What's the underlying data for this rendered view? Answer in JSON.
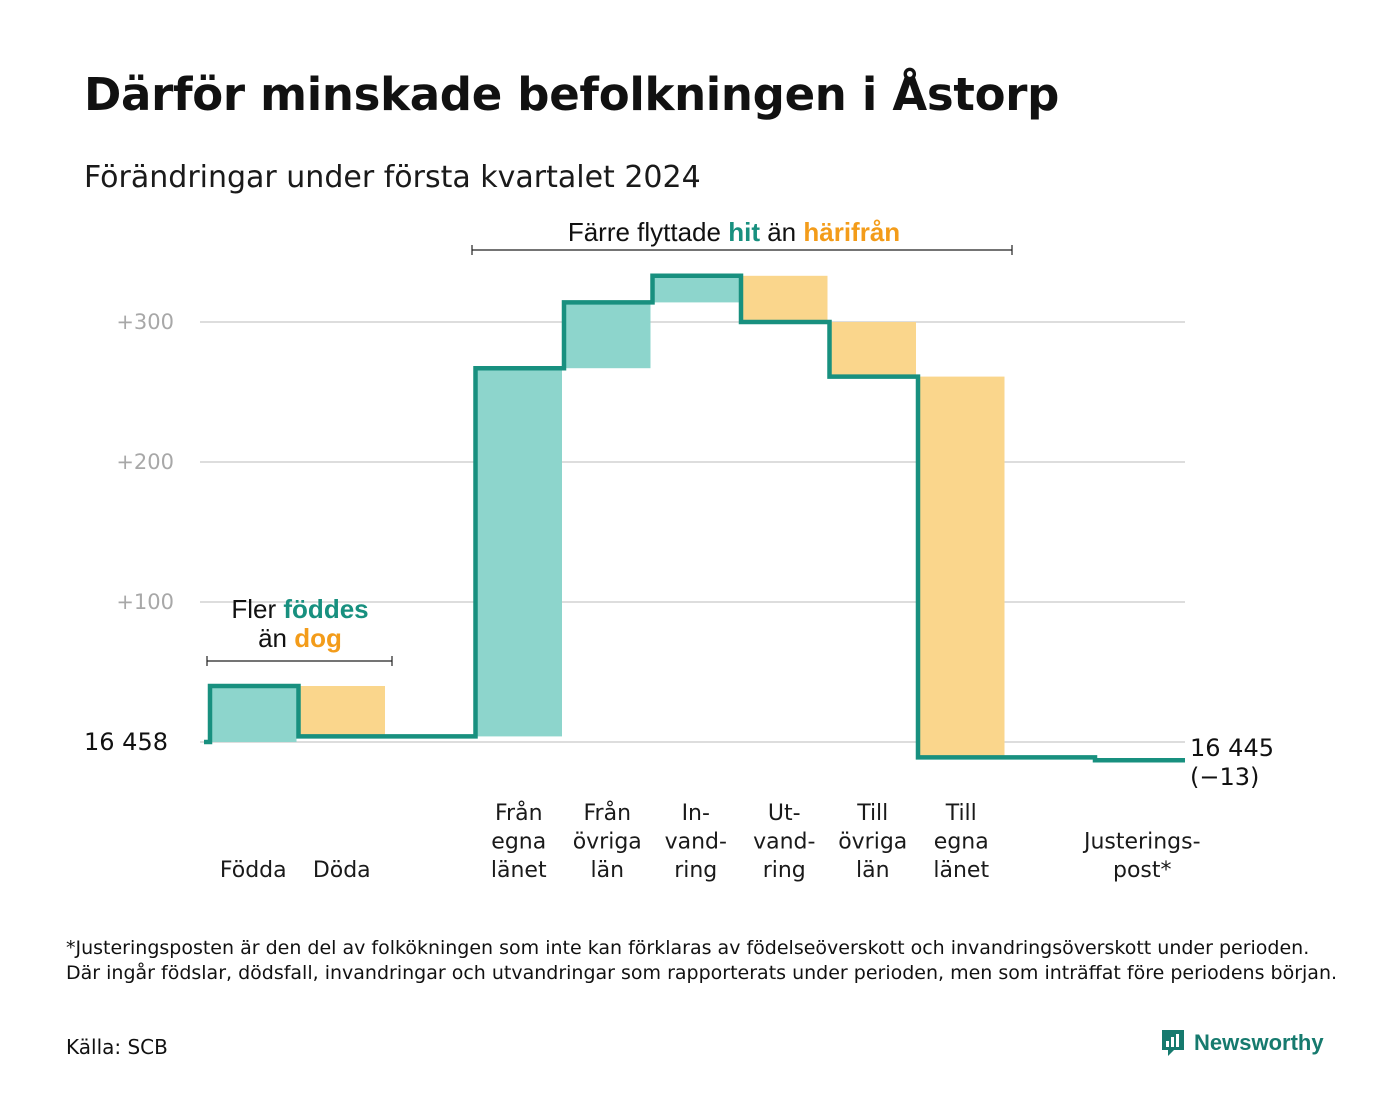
{
  "title": "Därför minskade befolkningen i Åstorp",
  "subtitle": "Förändringar under första kvartalet 2024",
  "footnote": "*Justeringsposten är den del av folkökningen som inte kan förklaras av födelseöverskott och invandringsöverskott under perioden. Där ingår födslar, dödsfall, invandringar och utvandringar som rapporterats under perioden, men som inträffat före periodens början.",
  "source": "Källa: SCB",
  "brand": "Newsworthy",
  "colors": {
    "increase_fill": "#8dd5cc",
    "decrease_fill": "#fad68c",
    "line": "#18907f",
    "teal_text": "#18907f",
    "orange_text": "#f39c1a",
    "grid": "#dddddd",
    "tick_text": "#a8a8a8"
  },
  "annotations": {
    "births": {
      "part1": "Fler",
      "part2": "föddes",
      "part3": "än",
      "part4": "dog"
    },
    "migration": {
      "part1": "Färre flyttade",
      "part2": "hit",
      "part3": "än",
      "part4": "härifrån"
    }
  },
  "chart_data": {
    "type": "waterfall",
    "start_label": "16  458",
    "start_value": 16458,
    "end_label": "16 445",
    "end_change_label": "(−13)",
    "end_value": 16445,
    "y_ticks": [
      {
        "value": 0,
        "label": ""
      },
      {
        "value": 100,
        "label": "+100"
      },
      {
        "value": 200,
        "label": "+200"
      },
      {
        "value": 300,
        "label": "+300"
      }
    ],
    "ylim": [
      -30,
      330
    ],
    "grid": true,
    "steps": [
      {
        "label": "Födda",
        "change": 40
      },
      {
        "label": "Döda",
        "change": -36
      },
      {
        "label": "Från egna länet",
        "change": 263
      },
      {
        "label": "Från övriga län",
        "change": 47
      },
      {
        "label": "In-vand-ring",
        "change": 19
      },
      {
        "label": "Ut-vand-ring",
        "change": -33
      },
      {
        "label": "Till övriga län",
        "change": -39
      },
      {
        "label": "Till egna länet",
        "change": -272
      },
      {
        "label": "Justerings-post*",
        "change": -2
      }
    ]
  }
}
